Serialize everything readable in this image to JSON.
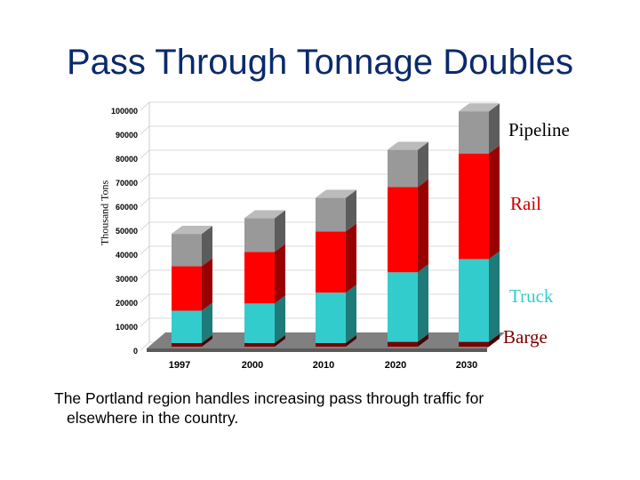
{
  "slide": {
    "title": "Pass Through Tonnage Doubles",
    "caption_line1": "The Portland region handles increasing pass through traffic for",
    "caption_line2": "elsewhere in the country."
  },
  "chart_data": {
    "type": "bar",
    "stacked": true,
    "three_d": true,
    "title": "",
    "xlabel": "",
    "ylabel": "Thousand Tons",
    "ylim": [
      0,
      100000
    ],
    "yticks": [
      0,
      10000,
      20000,
      30000,
      40000,
      50000,
      60000,
      70000,
      80000,
      90000,
      100000
    ],
    "categories": [
      "1997",
      "2000",
      "2010",
      "2020",
      "2030"
    ],
    "series": [
      {
        "name": "Barge",
        "color": "#7a0000",
        "values": [
          1500,
          1500,
          1500,
          2000,
          2000
        ]
      },
      {
        "name": "Truck",
        "color": "#33cccc",
        "values": [
          13500,
          16500,
          21000,
          29000,
          34500
        ]
      },
      {
        "name": "Rail",
        "color": "#ff0000",
        "values": [
          18500,
          21500,
          25500,
          35500,
          44000
        ]
      },
      {
        "name": "Pipeline",
        "color": "#999999",
        "values": [
          13500,
          14000,
          14000,
          15500,
          17500
        ]
      }
    ],
    "legend": [
      {
        "name": "Pipeline",
        "color": "#000000"
      },
      {
        "name": "Rail",
        "color": "#cc0000"
      },
      {
        "name": "Truck",
        "color": "#33cccc"
      },
      {
        "name": "Barge",
        "color": "#7a0000"
      }
    ],
    "floor_color": "#808080"
  }
}
